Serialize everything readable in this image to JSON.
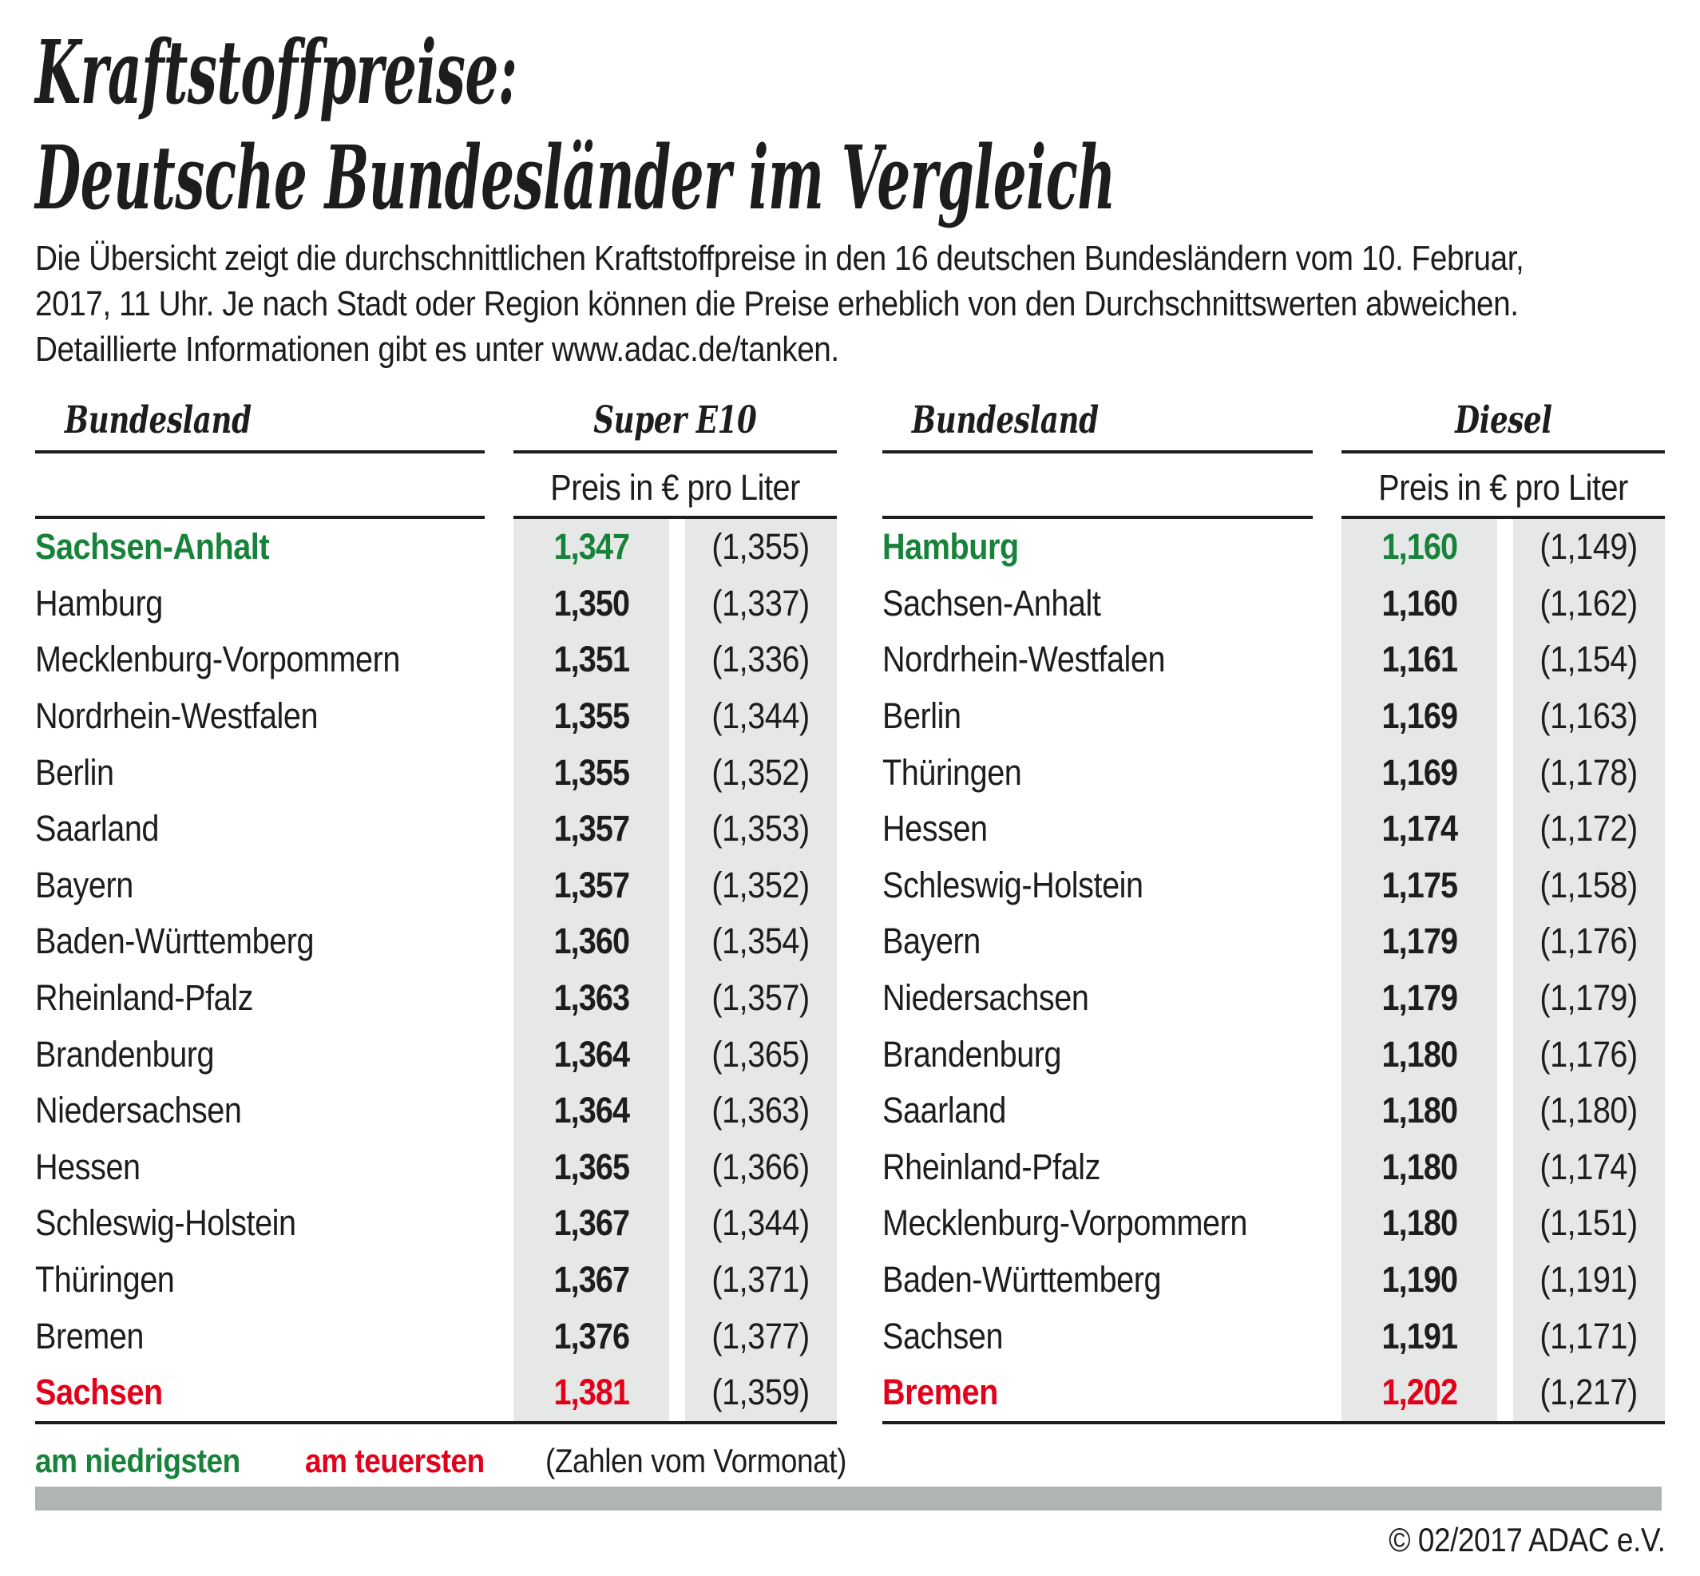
{
  "page": {
    "title_line1": "Kraftstoffpreise:",
    "title_line2": "Deutsche Bundesländer im Vergleich",
    "intro_line1": "Die Übersicht zeigt die durchschnittlichen Kraftstoffpreise in den 16 deutschen Bundesländern vom 10. Februar,",
    "intro_line2": "2017, 11 Uhr. Je nach Stadt oder Region können die Preise erheblich von den Durchschnittswerten abweichen.",
    "intro_line3": "Detaillierte Informationen gibt es unter www.adac.de/tanken.",
    "copyright": "© 02/2017 ADAC e.V."
  },
  "legend": {
    "lowest": "am niedrigsten",
    "highest": "am teuersten",
    "note": "(Zahlen vom Vormonat)"
  },
  "colors": {
    "ink": "#1d1d1b",
    "green": "#17823a",
    "red": "#e2001b",
    "shade": "#e5e8e6",
    "bar": "#afb5b3"
  },
  "chart_data": [
    {
      "type": "table",
      "title": "Super E10",
      "name_header": "Bundesland",
      "unit_header": "Preis in € pro Liter",
      "rows": [
        {
          "land": "Sachsen-Anhalt",
          "price": "1,347",
          "prev": "(1,355)",
          "highlight": "lowest"
        },
        {
          "land": "Hamburg",
          "price": "1,350",
          "prev": "(1,337)"
        },
        {
          "land": "Mecklenburg-Vorpommern",
          "price": "1,351",
          "prev": "(1,336)"
        },
        {
          "land": "Nordrhein-Westfalen",
          "price": "1,355",
          "prev": "(1,344)"
        },
        {
          "land": "Berlin",
          "price": "1,355",
          "prev": "(1,352)"
        },
        {
          "land": "Saarland",
          "price": "1,357",
          "prev": "(1,353)"
        },
        {
          "land": "Bayern",
          "price": "1,357",
          "prev": "(1,352)"
        },
        {
          "land": "Baden-Württemberg",
          "price": "1,360",
          "prev": "(1,354)"
        },
        {
          "land": "Rheinland-Pfalz",
          "price": "1,363",
          "prev": "(1,357)"
        },
        {
          "land": "Brandenburg",
          "price": "1,364",
          "prev": "(1,365)"
        },
        {
          "land": "Niedersachsen",
          "price": "1,364",
          "prev": "(1,363)"
        },
        {
          "land": "Hessen",
          "price": "1,365",
          "prev": "(1,366)"
        },
        {
          "land": "Schleswig-Holstein",
          "price": "1,367",
          "prev": "(1,344)"
        },
        {
          "land": "Thüringen",
          "price": "1,367",
          "prev": "(1,371)"
        },
        {
          "land": "Bremen",
          "price": "1,376",
          "prev": "(1,377)"
        },
        {
          "land": "Sachsen",
          "price": "1,381",
          "prev": "(1,359)",
          "highlight": "highest"
        }
      ]
    },
    {
      "type": "table",
      "title": "Diesel",
      "name_header": "Bundesland",
      "unit_header": "Preis in € pro Liter",
      "rows": [
        {
          "land": "Hamburg",
          "price": "1,160",
          "prev": "(1,149)",
          "highlight": "lowest"
        },
        {
          "land": "Sachsen-Anhalt",
          "price": "1,160",
          "prev": "(1,162)"
        },
        {
          "land": "Nordrhein-Westfalen",
          "price": "1,161",
          "prev": "(1,154)"
        },
        {
          "land": "Berlin",
          "price": "1,169",
          "prev": "(1,163)"
        },
        {
          "land": "Thüringen",
          "price": "1,169",
          "prev": "(1,178)"
        },
        {
          "land": "Hessen",
          "price": "1,174",
          "prev": "(1,172)"
        },
        {
          "land": "Schleswig-Holstein",
          "price": "1,175",
          "prev": "(1,158)"
        },
        {
          "land": "Bayern",
          "price": "1,179",
          "prev": "(1,176)"
        },
        {
          "land": "Niedersachsen",
          "price": "1,179",
          "prev": "(1,179)"
        },
        {
          "land": "Brandenburg",
          "price": "1,180",
          "prev": "(1,176)"
        },
        {
          "land": "Saarland",
          "price": "1,180",
          "prev": "(1,180)"
        },
        {
          "land": "Rheinland-Pfalz",
          "price": "1,180",
          "prev": "(1,174)"
        },
        {
          "land": "Mecklenburg-Vorpommern",
          "price": "1,180",
          "prev": "(1,151)"
        },
        {
          "land": "Baden-Württemberg",
          "price": "1,190",
          "prev": "(1,191)"
        },
        {
          "land": "Sachsen",
          "price": "1,191",
          "prev": "(1,171)"
        },
        {
          "land": "Bremen",
          "price": "1,202",
          "prev": "(1,217)",
          "highlight": "highest"
        }
      ]
    }
  ]
}
